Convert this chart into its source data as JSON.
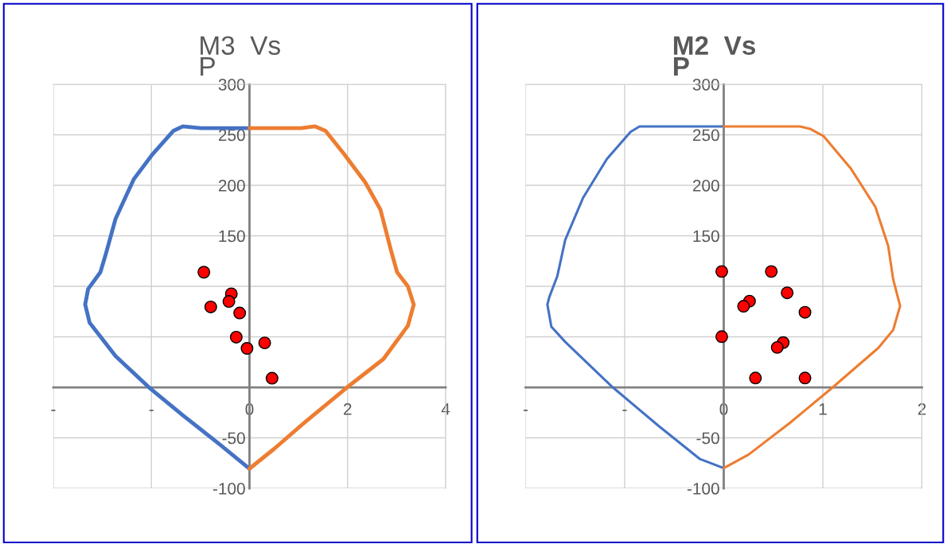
{
  "chart_data": [
    {
      "type": "line",
      "title": "M3  Vs\nP",
      "xlim": [
        -4,
        4
      ],
      "ylim": [
        -100,
        300
      ],
      "xticks": [
        {
          "value": -4,
          "label": "-"
        },
        {
          "value": -2,
          "label": "-"
        },
        0,
        2,
        4
      ],
      "yticks": [
        {
          "value": -100,
          "label": "-100"
        },
        -50,
        {
          "value": 0,
          "label": null
        },
        {
          "value": 50,
          "label": null
        },
        {
          "value": 100,
          "label": null
        },
        150,
        200,
        250,
        300
      ],
      "grid": true,
      "marker": "none",
      "line_style": "solid",
      "series": [
        {
          "color": "#4472c4",
          "x": [
            0,
            -0.99,
            -1.36,
            -1.55,
            -1.99,
            -2.36,
            -2.73,
            -2.92,
            -3.04,
            -3.29,
            -3.35,
            -3.26,
            -2.73,
            -2.05,
            -1.36,
            -0.62,
            0
          ],
          "values": [
            256.6,
            256.6,
            258.4,
            254,
            230,
            206,
            167,
            133.6,
            114,
            97.4,
            82,
            64,
            31,
            0,
            -27.7,
            -56,
            -80.5
          ]
        },
        {
          "color": "#ed7d31",
          "x": [
            0,
            1.05,
            1.33,
            1.55,
            1.92,
            2.36,
            2.67,
            2.88,
            3.01,
            3.23,
            3.35,
            3.23,
            2.73,
            1.99,
            1.12,
            0.5,
            0
          ],
          "values": [
            256.6,
            256.6,
            258.4,
            254,
            231.5,
            203,
            176,
            136.6,
            114,
            100,
            82,
            61,
            28,
            0,
            -35,
            -61,
            -80.5
          ]
        },
        {
          "type": "scatter",
          "color": "#ff0000",
          "marker": "circle",
          "x": [
            -0.93,
            -0.37,
            -0.42,
            -0.79,
            -0.2,
            -0.27,
            -0.05,
            0.31,
            0.46
          ],
          "values": [
            114,
            92.6,
            85,
            79.6,
            73.6,
            49.7,
            38.6,
            44,
            9
          ]
        }
      ]
    },
    {
      "type": "line",
      "title": "M2  Vs\nP",
      "xlim": [
        -2,
        2
      ],
      "ylim": [
        -100,
        300
      ],
      "xticks": [
        {
          "value": -2,
          "label": "-"
        },
        {
          "value": -1,
          "label": "-"
        },
        0,
        1,
        2
      ],
      "yticks": [
        {
          "value": -100,
          "label": "-100"
        },
        -50,
        {
          "value": 0,
          "label": null
        },
        {
          "value": 50,
          "label": null
        },
        {
          "value": 100,
          "label": null
        },
        150,
        200,
        250,
        300
      ],
      "grid": true,
      "marker": "none",
      "line_style": "solid",
      "series": [
        {
          "color": "#4472c4",
          "x": [
            0,
            -0.72,
            -0.85,
            -0.94,
            -1.18,
            -1.42,
            -1.6,
            -1.68,
            -1.76,
            -1.78,
            -1.74,
            -1.6,
            -1.12,
            -0.66,
            -0.24,
            0
          ],
          "values": [
            258.3,
            258.3,
            258.3,
            253,
            226,
            187.6,
            146,
            110,
            89.5,
            82,
            60,
            45,
            0,
            -38,
            -71,
            -80
          ]
        },
        {
          "color": "#ed7d31",
          "x": [
            0,
            0.77,
            0.87,
            1.01,
            1.28,
            1.53,
            1.66,
            1.71,
            1.78,
            1.71,
            1.56,
            1.1,
            0.67,
            0.25,
            0
          ],
          "values": [
            258.3,
            258.3,
            256,
            248.5,
            217,
            178.7,
            140,
            107,
            80.6,
            56.8,
            39,
            0,
            -35,
            -66.6,
            -80
          ]
        },
        {
          "type": "scatter",
          "color": "#ff0000",
          "marker": "circle",
          "x": [
            -0.02,
            0.48,
            0.64,
            0.26,
            0.2,
            0.82,
            -0.02,
            0.6,
            0.54,
            0.32,
            0.82
          ],
          "values": [
            114.7,
            114.7,
            93.6,
            85.3,
            80.3,
            74.3,
            50.2,
            44.3,
            39.5,
            9.2,
            9.2
          ]
        }
      ]
    }
  ]
}
